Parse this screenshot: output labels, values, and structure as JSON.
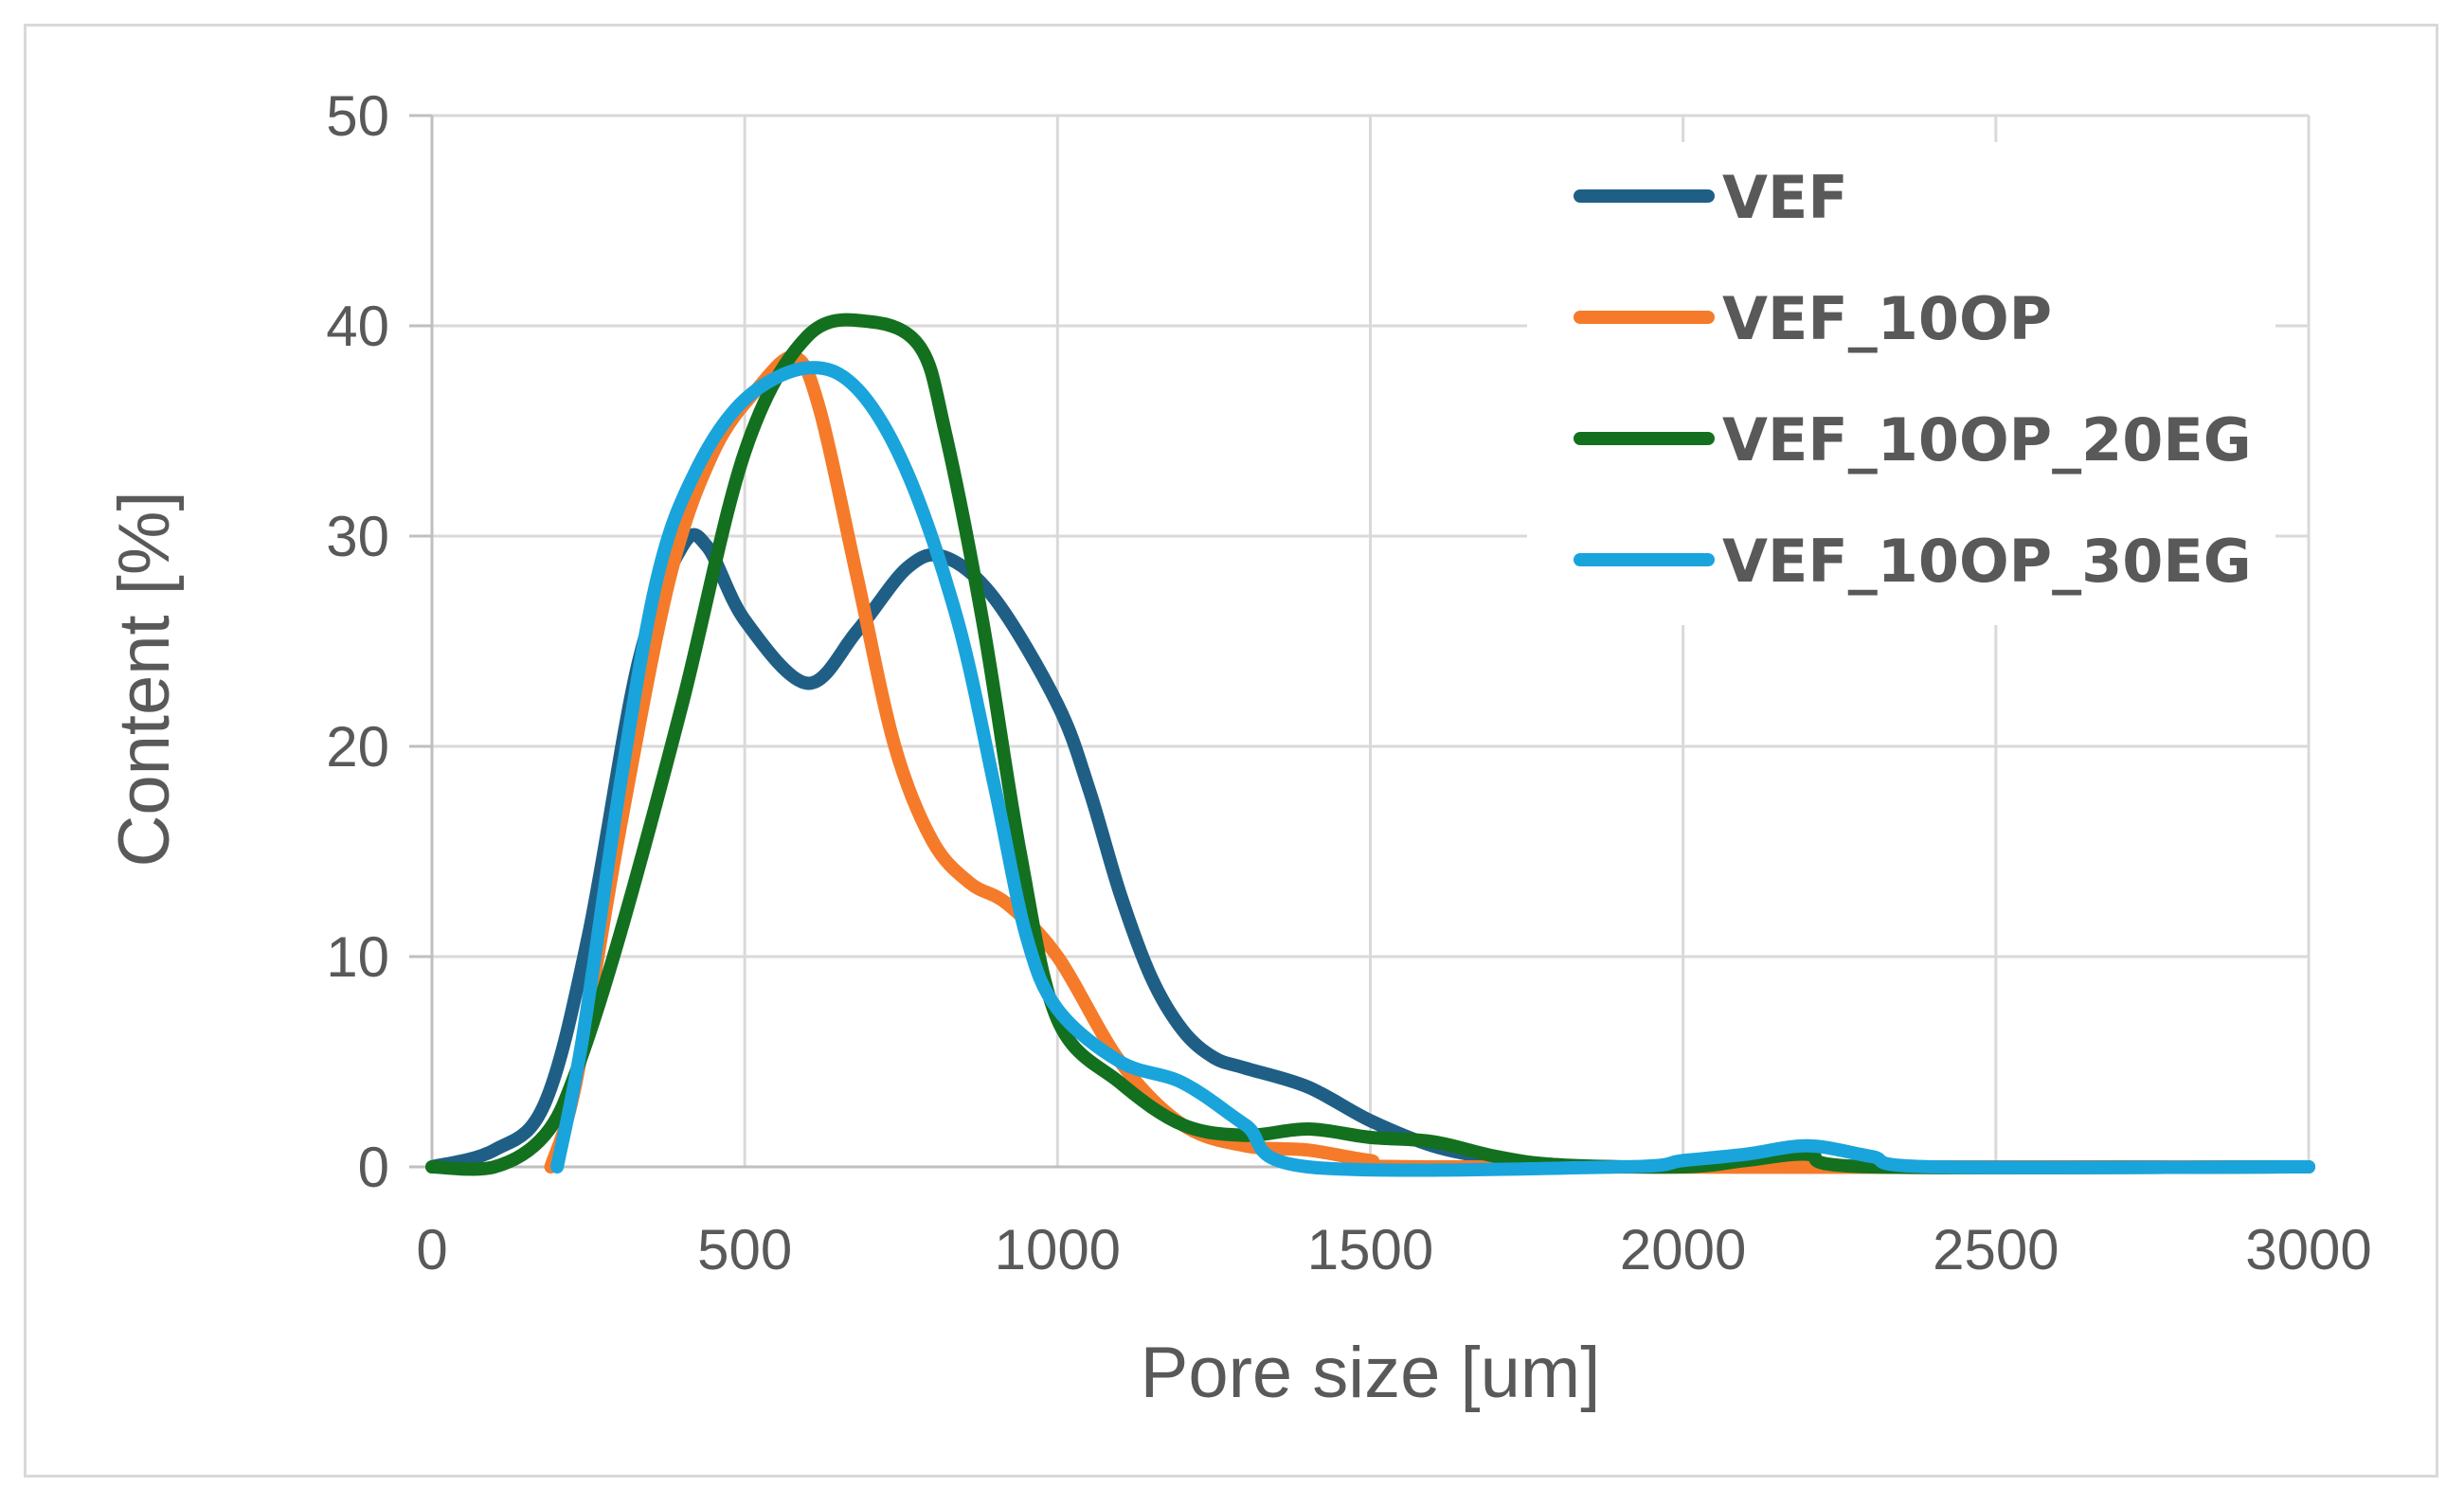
{
  "chart_data": {
    "type": "line",
    "title": "",
    "xlabel": "Pore size [um]",
    "ylabel": "Content [%]",
    "xlim": [
      0,
      3000
    ],
    "ylim": [
      0,
      50
    ],
    "xticks": [
      0,
      500,
      1000,
      1500,
      2000,
      2500,
      3000
    ],
    "yticks": [
      0,
      10,
      20,
      30,
      40,
      50
    ],
    "grid": true,
    "legend_position": "top-right",
    "series": [
      {
        "name": "VEF",
        "color": "#1f5f86",
        "points": [
          [
            0,
            0
          ],
          [
            100,
            0.8
          ],
          [
            180,
            3
          ],
          [
            250,
            11
          ],
          [
            330,
            24
          ],
          [
            400,
            29.5
          ],
          [
            440,
            29.5
          ],
          [
            500,
            26
          ],
          [
            600,
            23
          ],
          [
            680,
            25.5
          ],
          [
            760,
            28.5
          ],
          [
            820,
            29
          ],
          [
            900,
            27
          ],
          [
            1000,
            22
          ],
          [
            1050,
            18
          ],
          [
            1100,
            13
          ],
          [
            1150,
            9
          ],
          [
            1200,
            6.5
          ],
          [
            1250,
            5.2
          ],
          [
            1300,
            4.7
          ],
          [
            1400,
            3.8
          ],
          [
            1500,
            2.2
          ],
          [
            1600,
            1
          ],
          [
            1700,
            0.4
          ],
          [
            1800,
            0.1
          ],
          [
            1900,
            0
          ],
          [
            3000,
            0
          ]
        ]
      },
      {
        "name": "VEF_10OP",
        "color": "#f57b2a",
        "points": [
          [
            190,
            0
          ],
          [
            230,
            4
          ],
          [
            300,
            16
          ],
          [
            380,
            28
          ],
          [
            450,
            34
          ],
          [
            520,
            37
          ],
          [
            580,
            38.5
          ],
          [
            620,
            36
          ],
          [
            680,
            28
          ],
          [
            740,
            20
          ],
          [
            800,
            15.5
          ],
          [
            860,
            13.5
          ],
          [
            920,
            12.5
          ],
          [
            1000,
            10
          ],
          [
            1100,
            5
          ],
          [
            1200,
            2
          ],
          [
            1300,
            1
          ],
          [
            1400,
            0.8
          ],
          [
            1500,
            0.3
          ],
          [
            1600,
            0
          ],
          [
            3000,
            0
          ]
        ]
      },
      {
        "name": "VEF_10OP_20EG",
        "color": "#13701f",
        "points": [
          [
            0,
            0
          ],
          [
            100,
            0
          ],
          [
            180,
            1.5
          ],
          [
            230,
            4.5
          ],
          [
            300,
            11
          ],
          [
            400,
            22
          ],
          [
            500,
            34
          ],
          [
            600,
            39.5
          ],
          [
            700,
            40.2
          ],
          [
            780,
            39
          ],
          [
            820,
            35
          ],
          [
            880,
            26
          ],
          [
            940,
            15
          ],
          [
            1000,
            7
          ],
          [
            1100,
            4
          ],
          [
            1200,
            2
          ],
          [
            1300,
            1.5
          ],
          [
            1400,
            1.8
          ],
          [
            1500,
            1.4
          ],
          [
            1600,
            1.2
          ],
          [
            1700,
            0.5
          ],
          [
            1800,
            0.1
          ],
          [
            2000,
            0
          ],
          [
            2100,
            0.3
          ],
          [
            2200,
            0.6
          ],
          [
            2300,
            0
          ],
          [
            3000,
            0
          ]
        ]
      },
      {
        "name": "VEF_10OP_30EG",
        "color": "#19a4dc",
        "points": [
          [
            200,
            0
          ],
          [
            240,
            6
          ],
          [
            300,
            18
          ],
          [
            360,
            28
          ],
          [
            420,
            33
          ],
          [
            500,
            36.5
          ],
          [
            600,
            38
          ],
          [
            680,
            37
          ],
          [
            760,
            33
          ],
          [
            840,
            26
          ],
          [
            900,
            18
          ],
          [
            950,
            11
          ],
          [
            1000,
            7.5
          ],
          [
            1100,
            5
          ],
          [
            1200,
            4
          ],
          [
            1300,
            2
          ],
          [
            1400,
            0
          ],
          [
            1900,
            0
          ],
          [
            2000,
            0.3
          ],
          [
            2100,
            0.6
          ],
          [
            2200,
            1
          ],
          [
            2300,
            0.5
          ],
          [
            2400,
            0
          ],
          [
            3000,
            0
          ]
        ]
      }
    ]
  }
}
